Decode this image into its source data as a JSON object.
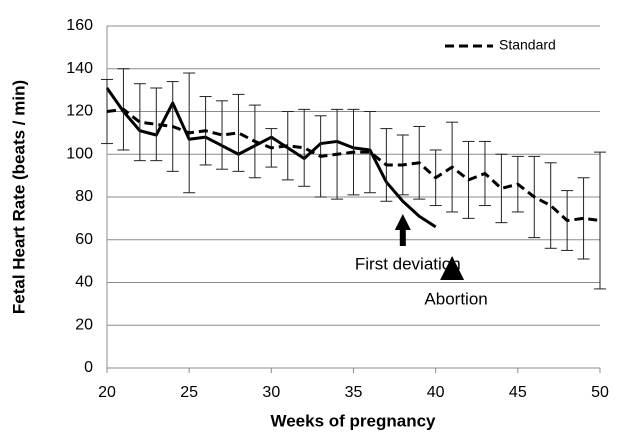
{
  "chart_data": {
    "type": "line",
    "xlabel": "Weeks of pregnancy",
    "ylabel": "Fetal Heart Rate (beats / min)",
    "x": [
      20,
      21,
      22,
      23,
      24,
      25,
      26,
      27,
      28,
      29,
      30,
      31,
      32,
      33,
      34,
      35,
      36,
      37,
      38,
      39,
      40,
      41,
      42,
      43,
      44,
      45,
      46,
      47,
      48,
      49,
      50
    ],
    "series": [
      {
        "color": "#000000",
        "dash": "solid",
        "values": [
          131,
          120,
          111,
          109,
          124,
          107,
          108,
          104,
          100,
          104,
          108,
          103,
          98,
          105,
          106,
          103,
          102,
          87,
          78,
          71,
          66,
          null,
          null,
          null,
          null,
          null,
          null,
          null,
          null,
          null,
          null
        ]
      },
      {
        "name": "Standard",
        "color": "#000000",
        "dash": "dashed",
        "values": [
          120,
          121,
          115,
          114,
          113,
          110,
          111,
          109,
          110,
          106,
          103,
          104,
          103,
          99,
          100,
          101,
          101,
          95,
          95,
          96,
          89,
          94,
          88,
          91,
          84,
          86,
          80,
          76,
          69,
          70,
          69
        ],
        "errors": [
          15,
          19,
          18,
          17,
          21,
          28,
          16,
          16,
          18,
          17,
          9,
          16,
          18,
          19,
          21,
          20,
          19,
          17,
          14,
          17,
          13,
          21,
          18,
          15,
          16,
          13,
          19,
          20,
          14,
          19,
          32
        ]
      }
    ],
    "annotations": [
      {
        "text": "First deviation",
        "x": 38
      },
      {
        "text": "Abortion",
        "x": 41
      }
    ],
    "xlim": [
      20,
      50
    ],
    "xticks": [
      20,
      25,
      30,
      35,
      40,
      45,
      50
    ],
    "ylim": [
      0,
      160
    ],
    "yticks": [
      0,
      20,
      40,
      60,
      80,
      100,
      120,
      140,
      160
    ],
    "grid": true,
    "legend": "upper right"
  }
}
